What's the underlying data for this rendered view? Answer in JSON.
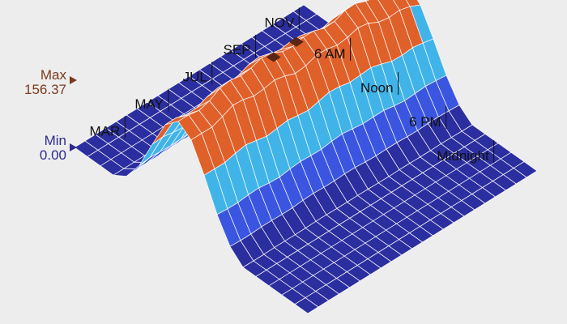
{
  "legend": {
    "max_label": "Max",
    "max_value": "156.37",
    "min_label": "Min",
    "min_value": "0.00",
    "max_color": "#7a3a1e",
    "min_color": "#2e2a8f"
  },
  "chart_data": {
    "type": "surface",
    "title": "",
    "month_axis": {
      "tick_labels": [
        "MAR",
        "MAY",
        "JUL",
        "SEP",
        "NOV"
      ]
    },
    "time_axis": {
      "tick_labels": [
        "6 AM",
        "Noon",
        "6 PM",
        "Midnight"
      ]
    },
    "z_range": [
      0,
      156.37
    ],
    "color_bands": [
      {
        "from": 0,
        "to": 10,
        "color": "#2b2e9e"
      },
      {
        "from": 10,
        "to": 50,
        "color": "#3a56e0"
      },
      {
        "from": 50,
        "to": 100,
        "color": "#40b4e8"
      },
      {
        "from": 100,
        "to": 156.37,
        "color": "#e0602a"
      }
    ],
    "peak_markers": 2
  }
}
